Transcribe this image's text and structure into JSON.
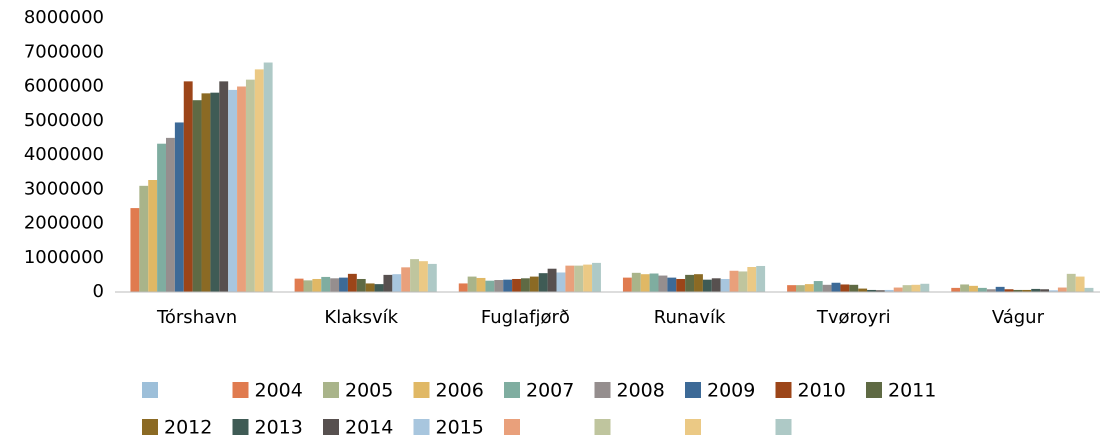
{
  "chart_data": {
    "type": "bar",
    "categories": [
      "Tórshavn",
      "Klaksvík",
      "Fuglafjørð",
      "Runavík",
      "Tvøroyri",
      "Vágur"
    ],
    "ylim": [
      0,
      8000000
    ],
    "yticks": [
      0,
      1000000,
      2000000,
      3000000,
      4000000,
      5000000,
      6000000,
      7000000,
      8000000
    ],
    "grid": false,
    "legend": "bottom",
    "series": [
      {
        "name": null,
        "color": "#9dbfd9",
        "values": [
          null,
          null,
          null,
          null,
          null,
          null
        ]
      },
      {
        "name": "2004",
        "color": "#e07b4f",
        "values": [
          2450000,
          390000,
          250000,
          420000,
          200000,
          120000
        ]
      },
      {
        "name": "2005",
        "color": "#a9b48a",
        "values": [
          3100000,
          340000,
          450000,
          560000,
          200000,
          220000
        ]
      },
      {
        "name": "2006",
        "color": "#e0b865",
        "values": [
          3270000,
          380000,
          410000,
          520000,
          230000,
          180000
        ]
      },
      {
        "name": "2007",
        "color": "#7fada0",
        "values": [
          4330000,
          440000,
          330000,
          540000,
          320000,
          120000
        ]
      },
      {
        "name": "2008",
        "color": "#958e8e",
        "values": [
          4500000,
          400000,
          350000,
          480000,
          210000,
          80000
        ]
      },
      {
        "name": "2009",
        "color": "#3d6a97",
        "values": [
          4950000,
          420000,
          360000,
          420000,
          270000,
          150000
        ]
      },
      {
        "name": "2010",
        "color": "#9c4519",
        "values": [
          6150000,
          530000,
          380000,
          380000,
          220000,
          80000
        ]
      },
      {
        "name": "2011",
        "color": "#5f6a44",
        "values": [
          5600000,
          380000,
          400000,
          500000,
          210000,
          60000
        ]
      },
      {
        "name": "2012",
        "color": "#8b6a24",
        "values": [
          5800000,
          250000,
          450000,
          520000,
          100000,
          60000
        ]
      },
      {
        "name": "2013",
        "color": "#3f5b55",
        "values": [
          5820000,
          230000,
          550000,
          360000,
          60000,
          90000
        ]
      },
      {
        "name": "2014",
        "color": "#57504f",
        "values": [
          6150000,
          500000,
          680000,
          400000,
          50000,
          80000
        ]
      },
      {
        "name": "2015",
        "color": "#a8c6de",
        "values": [
          5900000,
          520000,
          570000,
          380000,
          60000,
          50000
        ]
      },
      {
        "name": null,
        "color": "#e9a07b",
        "values": [
          6000000,
          720000,
          770000,
          620000,
          130000,
          130000
        ]
      },
      {
        "name": null,
        "color": "#bfc59e",
        "values": [
          6200000,
          960000,
          770000,
          600000,
          200000,
          530000
        ]
      },
      {
        "name": null,
        "color": "#ebc985",
        "values": [
          6500000,
          900000,
          800000,
          730000,
          210000,
          450000
        ]
      },
      {
        "name": null,
        "color": "#aec9c6",
        "values": [
          6700000,
          820000,
          850000,
          760000,
          240000,
          120000
        ]
      }
    ]
  }
}
